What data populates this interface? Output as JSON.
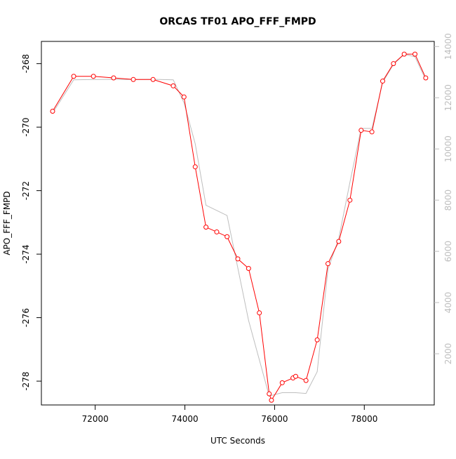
{
  "chart_data": {
    "type": "line",
    "title": "ORCAS TF01 APO_FFF_FMPD",
    "xlabel": "UTC Seconds",
    "ylabel": "APO_FFF_FMPD",
    "xlim": [
      70800,
      79560
    ],
    "ylim": [
      -278.75,
      -267.3
    ],
    "y2lim": [
      0,
      14200
    ],
    "x_ticks": [
      72000,
      74000,
      76000,
      78000
    ],
    "x_tick_labels": [
      "72000",
      "74000",
      "76000",
      "78000"
    ],
    "y_ticks": [
      -268,
      -270,
      -272,
      -274,
      -276,
      -278
    ],
    "y_tick_labels": [
      "-268",
      "-270",
      "-272",
      "-274",
      "-276",
      "-278"
    ],
    "y2_ticks": [
      2000,
      4000,
      6000,
      8000,
      10000,
      12000,
      14000
    ],
    "y2_tick_labels": [
      "2000",
      "4000",
      "6000",
      "8000",
      "10000",
      "12000",
      "14000"
    ],
    "colors": {
      "primary": "#ff0000",
      "secondary": "#bebebe",
      "axis": "#000000"
    },
    "series": [
      {
        "axis": "left",
        "marker": "open-circle",
        "color": "#ff0000",
        "x": [
          71050,
          71520,
          71960,
          72410,
          72850,
          73290,
          73740,
          73980,
          74230,
          74470,
          74710,
          74940,
          75180,
          75420,
          75660,
          75880,
          75930,
          76170,
          76410,
          76470,
          76700,
          76950,
          77190,
          77430,
          77680,
          77930,
          78170,
          78410,
          78650,
          78890,
          79130,
          79370
        ],
        "y": [
          -269.5,
          -268.4,
          -268.4,
          -268.45,
          -268.5,
          -268.5,
          -268.7,
          -269.05,
          -271.25,
          -273.15,
          -273.3,
          -273.45,
          -274.15,
          -274.45,
          -275.85,
          -278.4,
          -278.6,
          -278.05,
          -277.9,
          -277.85,
          -277.98,
          -276.7,
          -274.3,
          -273.6,
          -272.3,
          -270.1,
          -270.15,
          -268.55,
          -268.0,
          -267.7,
          -267.7,
          -268.45
        ]
      },
      {
        "axis": "right",
        "marker": "none",
        "color": "#bebebe",
        "x": [
          71050,
          71520,
          71960,
          72410,
          72850,
          73290,
          73740,
          73980,
          74230,
          74470,
          74940,
          75420,
          75880,
          76170,
          76470,
          76700,
          76950,
          77190,
          77430,
          77680,
          77930,
          78170,
          78410,
          78650,
          78890,
          79130,
          79370
        ],
        "y": [
          11400,
          12700,
          12710,
          12720,
          12710,
          12720,
          12700,
          11800,
          10200,
          7800,
          7400,
          3300,
          350,
          480,
          480,
          450,
          1300,
          5300,
          6500,
          8700,
          10800,
          10800,
          12600,
          13300,
          13700,
          13600,
          12700
        ]
      }
    ]
  }
}
